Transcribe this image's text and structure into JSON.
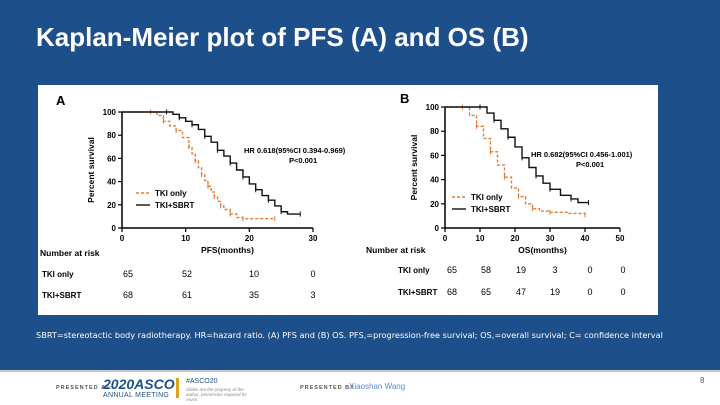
{
  "slide": {
    "title": "Kaplan-Meier plot of PFS (A) and OS (B)",
    "caption": "SBRT=stereotactic body radiotherapy. HR=hazard ratio. (A) PFS and (B) OS. PFS,=progression-free survival; OS,=overall survival; C= confidence interval",
    "background_color": "#1d4f8b"
  },
  "footer": {
    "presented_at": "PRESENTED AT:",
    "meeting_year": "2020",
    "meeting_brand": "ASCO",
    "meeting_name": "ANNUAL MEETING",
    "hashtag": "#ASCO20",
    "slides_notice": "Slides are the property of the author, permission required for reuse.",
    "presented_by": "PRESENTED BY:",
    "presenter": "Xiaoshan Wang",
    "page_number": "8"
  },
  "chart_data": [
    {
      "type": "line",
      "panel_label": "A",
      "xlabel": "PFS(months)",
      "ylabel": "Percent survival",
      "xlim": [
        0,
        30
      ],
      "ylim": [
        0,
        100
      ],
      "xticks": [
        0,
        10,
        20,
        30
      ],
      "yticks": [
        0,
        20,
        40,
        60,
        80,
        100
      ],
      "hr_text": "HR 0.618(95%CI 0.394-0.969)",
      "p_text": "P<0.001",
      "series": [
        {
          "name": "TKI only",
          "color": "#e07b39",
          "dashed": true,
          "x": [
            0,
            4.5,
            5.5,
            6.5,
            7.5,
            8.5,
            9.5,
            10.5,
            11,
            11.5,
            12,
            12.5,
            13,
            13.5,
            14,
            14.5,
            15,
            15.5,
            16,
            17,
            18,
            19,
            20,
            24
          ],
          "y": [
            100,
            100,
            97,
            92,
            88,
            84,
            78,
            70,
            64,
            58,
            52,
            46,
            41,
            36,
            31,
            27,
            23,
            19,
            16,
            12,
            9,
            8,
            8,
            8
          ]
        },
        {
          "name": "TKI+SBRT",
          "color": "#111111",
          "dashed": false,
          "x": [
            0,
            7,
            8,
            9,
            10,
            11,
            12,
            13,
            14,
            15,
            16,
            17,
            18,
            19,
            20,
            21,
            22,
            23,
            24,
            25,
            26,
            28
          ],
          "y": [
            100,
            100,
            98,
            95,
            92,
            89,
            85,
            79,
            74,
            67,
            62,
            56,
            50,
            44,
            38,
            33,
            28,
            24,
            19,
            14,
            12,
            12
          ]
        }
      ],
      "risk_table": {
        "header": "Number at risk",
        "rows": [
          {
            "label": "TKI only",
            "values": [
              "65",
              "52",
              "10",
              "0"
            ]
          },
          {
            "label": "TKI+SBRT",
            "values": [
              "68",
              "61",
              "35",
              "3"
            ]
          }
        ]
      }
    },
    {
      "type": "line",
      "panel_label": "B",
      "xlabel": "OS(months)",
      "ylabel": "Percent survival",
      "xlim": [
        0,
        50
      ],
      "ylim": [
        0,
        100
      ],
      "xticks": [
        0,
        10,
        20,
        30,
        40,
        50
      ],
      "yticks": [
        0,
        20,
        40,
        60,
        80,
        100
      ],
      "hr_text": "HR 0.682(95%CI 0.456-1.001)",
      "p_text": "P<0.001",
      "series": [
        {
          "name": "TKI only",
          "color": "#e07b39",
          "dashed": true,
          "x": [
            0,
            5,
            7,
            9,
            11,
            13,
            15,
            17,
            19,
            21,
            23,
            25,
            27,
            30,
            35,
            40
          ],
          "y": [
            100,
            100,
            93,
            84,
            74,
            63,
            52,
            42,
            33,
            26,
            20,
            16,
            14,
            13,
            12,
            11
          ]
        },
        {
          "name": "TKI+SBRT",
          "color": "#111111",
          "dashed": false,
          "x": [
            0,
            10,
            12,
            14,
            16,
            18,
            20,
            22,
            24,
            26,
            28,
            30,
            33,
            36,
            38,
            41
          ],
          "y": [
            100,
            100,
            95,
            89,
            82,
            75,
            67,
            58,
            50,
            43,
            37,
            32,
            27,
            24,
            21,
            21
          ]
        }
      ],
      "risk_table": {
        "header": "Number at risk",
        "rows": [
          {
            "label": "TKI only",
            "values": [
              "65",
              "58",
              "19",
              "3",
              "0",
              "0"
            ]
          },
          {
            "label": "TKI+SBRT",
            "values": [
              "68",
              "65",
              "47",
              "19",
              "0",
              "0"
            ]
          }
        ]
      }
    }
  ]
}
